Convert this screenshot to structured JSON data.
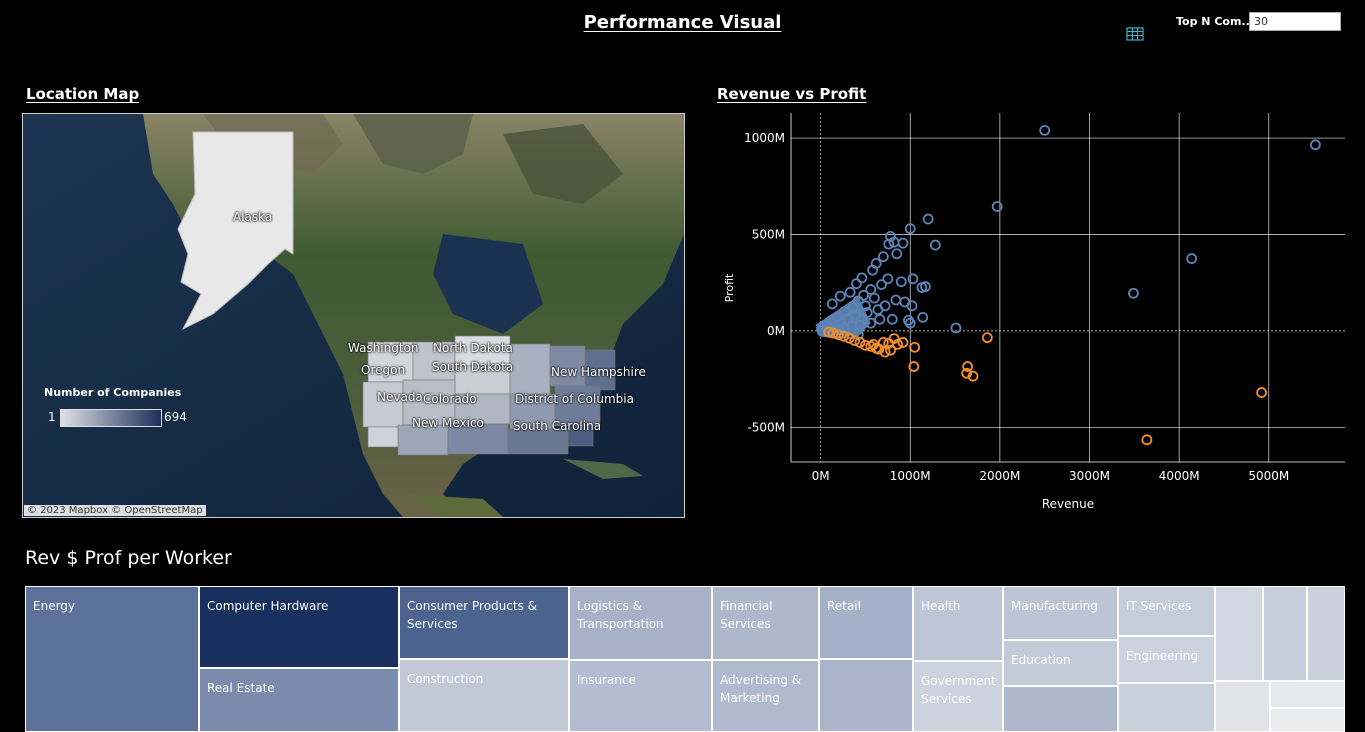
{
  "header": {
    "title": "Performance Visual",
    "top_n_label": "Top N Com...",
    "top_n_value": "30",
    "table_icon": "table-grid-icon"
  },
  "map_section": {
    "title": "Location Map",
    "states": [
      "Alaska",
      "Washington",
      "Oregon",
      "North Dakota",
      "South Dakota",
      "New Hampshire",
      "Nevada",
      "Colorado",
      "District of Columbia",
      "New Mexico",
      "South Carolina"
    ],
    "legend_title": "Number of Companies",
    "legend_min": "1",
    "legend_max": "694",
    "attribution": "© 2023 Mapbox  © OpenStreetMap"
  },
  "scatter_section": {
    "title": "Revenue  vs Profit"
  },
  "chart_data": {
    "type": "scatter",
    "xlabel": "Revenue",
    "ylabel": "Profit",
    "xlim": [
      -330,
      5850
    ],
    "ylim": [
      -680,
      1130
    ],
    "x_ticks": [
      "0M",
      "1000M",
      "2000M",
      "3000M",
      "4000M",
      "5000M"
    ],
    "x_tick_values": [
      0,
      1000,
      2000,
      3000,
      4000,
      5000
    ],
    "y_ticks": [
      "1000M",
      "500M",
      "0M",
      "-500M"
    ],
    "y_tick_values": [
      1000,
      500,
      0,
      -500
    ],
    "grid": true,
    "colors": {
      "profit": "#5b84b8",
      "loss": "#f28e2b"
    },
    "series": [
      {
        "color": "#5b84b8",
        "points": [
          [
            2500,
            1040
          ],
          [
            5520,
            965
          ],
          [
            1970,
            645
          ],
          [
            1200,
            580
          ],
          [
            1000,
            530
          ],
          [
            4140,
            375
          ],
          [
            3490,
            195
          ],
          [
            1280,
            445
          ],
          [
            780,
            490
          ],
          [
            760,
            450
          ],
          [
            820,
            460
          ],
          [
            920,
            455
          ],
          [
            850,
            400
          ],
          [
            700,
            385
          ],
          [
            620,
            350
          ],
          [
            580,
            315
          ],
          [
            1030,
            270
          ],
          [
            1130,
            225
          ],
          [
            1170,
            230
          ],
          [
            900,
            255
          ],
          [
            750,
            270
          ],
          [
            680,
            240
          ],
          [
            560,
            215
          ],
          [
            480,
            185
          ],
          [
            420,
            155
          ],
          [
            840,
            160
          ],
          [
            940,
            150
          ],
          [
            1020,
            130
          ],
          [
            1140,
            70
          ],
          [
            980,
            55
          ],
          [
            800,
            60
          ],
          [
            1000,
            40
          ],
          [
            1510,
            15
          ],
          [
            640,
            110
          ],
          [
            520,
            95
          ],
          [
            390,
            85
          ],
          [
            300,
            60
          ],
          [
            230,
            40
          ],
          [
            160,
            25
          ],
          [
            90,
            12
          ],
          [
            40,
            5
          ],
          [
            20,
            2
          ],
          [
            130,
            140
          ],
          [
            220,
            180
          ],
          [
            330,
            200
          ],
          [
            400,
            245
          ],
          [
            460,
            275
          ],
          [
            360,
            120
          ],
          [
            270,
            100
          ],
          [
            180,
            70
          ],
          [
            110,
            50
          ],
          [
            60,
            30
          ],
          [
            30,
            20
          ],
          [
            10,
            8
          ],
          [
            500,
            130
          ],
          [
            600,
            170
          ],
          [
            720,
            130
          ],
          [
            660,
            60
          ],
          [
            560,
            40
          ],
          [
            440,
            30
          ],
          [
            350,
            25
          ],
          [
            260,
            15
          ],
          [
            200,
            8
          ],
          [
            150,
            5
          ],
          [
            80,
            3
          ],
          [
            20,
            -3
          ],
          [
            50,
            -5
          ],
          [
            100,
            -8
          ],
          [
            180,
            -10
          ],
          [
            260,
            -12
          ],
          [
            340,
            -15
          ],
          [
            420,
            -20
          ]
        ]
      },
      {
        "color": "#f28e2b",
        "points": [
          [
            3640,
            -565
          ],
          [
            4920,
            -320
          ],
          [
            1700,
            -235
          ],
          [
            1630,
            -220
          ],
          [
            1640,
            -185
          ],
          [
            1040,
            -185
          ],
          [
            1860,
            -35
          ],
          [
            1050,
            -85
          ],
          [
            920,
            -60
          ],
          [
            820,
            -40
          ],
          [
            760,
            -65
          ],
          [
            700,
            -60
          ],
          [
            620,
            -90
          ],
          [
            560,
            -80
          ],
          [
            500,
            -75
          ],
          [
            440,
            -60
          ],
          [
            380,
            -50
          ],
          [
            320,
            -38
          ],
          [
            260,
            -28
          ],
          [
            200,
            -20
          ],
          [
            140,
            -12
          ],
          [
            90,
            -6
          ],
          [
            720,
            -110
          ],
          [
            780,
            -100
          ],
          [
            860,
            -70
          ],
          [
            650,
            -95
          ],
          [
            590,
            -70
          ]
        ]
      }
    ]
  },
  "treemap": {
    "title": "Rev $ Prof per Worker",
    "tiles": [
      {
        "label": "Energy",
        "color": "#5b7199"
      },
      {
        "label": "Computer Hardware",
        "color": "#18305e"
      },
      {
        "label": "Real Estate",
        "color": "#7b8bad"
      },
      {
        "label": "Consumer Products & Services",
        "color": "#4c638f"
      },
      {
        "label": "Construction",
        "color": "#c2c9d6"
      },
      {
        "label": "Logistics & Transportation",
        "color": "#a7b2c8"
      },
      {
        "label": "Insurance",
        "color": "#b3bdd1"
      },
      {
        "label": "Financial Services",
        "color": "#aeb8cc"
      },
      {
        "label": "Advertising & Marketing",
        "color": "#b0bacf"
      },
      {
        "label": "Retail",
        "color": "#a5b1c8"
      },
      {
        "label": "",
        "color": "#aab5cb"
      },
      {
        "label": "Health",
        "color": "#bdc6d6"
      },
      {
        "label": "Government Services",
        "color": "#cdd3de"
      },
      {
        "label": "Manufacturing",
        "color": "#bcc5d5"
      },
      {
        "label": "Education",
        "color": "#c3cbd9"
      },
      {
        "label": "",
        "color": "#adb8cd"
      },
      {
        "label": "IT Services",
        "color": "#c5ccda"
      },
      {
        "label": "Engineering",
        "color": "#ccd2de"
      },
      {
        "label": "",
        "color": "#c9d0dd"
      },
      {
        "label": "",
        "color": "#d2d7e1"
      },
      {
        "label": "",
        "color": "#c8cfdc"
      },
      {
        "label": "",
        "color": "#cbd1dd"
      },
      {
        "label": "",
        "color": "#e1e3e8"
      },
      {
        "label": "",
        "color": "#e6e7ea"
      },
      {
        "label": "",
        "color": "#eaebed"
      }
    ]
  }
}
